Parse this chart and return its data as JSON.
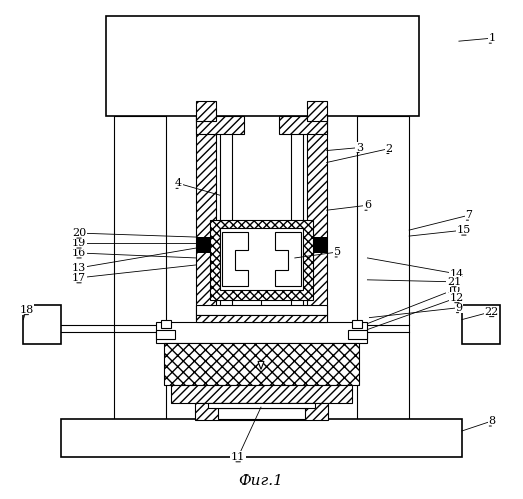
{
  "title": "Фиг.1",
  "bg_color": "#ffffff",
  "lc": "#000000",
  "figsize": [
    5.23,
    4.99
  ],
  "dpi": 100
}
